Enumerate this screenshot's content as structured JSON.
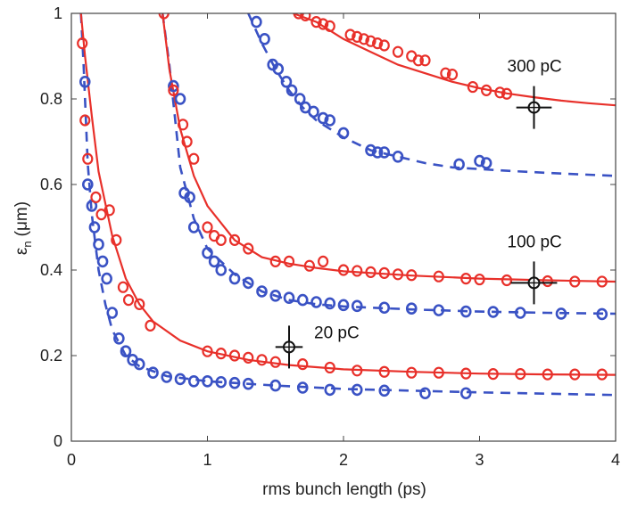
{
  "chart_data": {
    "type": "scatter",
    "xlabel": "rms bunch length (ps)",
    "ylabel_main": "ε",
    "ylabel_sub": "n",
    "ylabel_unit": "(μm)",
    "xlim": [
      0,
      4
    ],
    "ylim": [
      0,
      1
    ],
    "xticks": [
      "0",
      "1",
      "2",
      "3",
      "4"
    ],
    "yticks": [
      "0",
      "0.2",
      "0.4",
      "0.6",
      "0.8",
      "1"
    ],
    "grid": false,
    "colors": {
      "red": "#e8302a",
      "blue": "#3a52c4",
      "marker": "#111111"
    },
    "groups": [
      {
        "label": "20 pC",
        "red_curve": [
          [
            0.07,
            1.0
          ],
          [
            0.1,
            0.9
          ],
          [
            0.15,
            0.76
          ],
          [
            0.2,
            0.63
          ],
          [
            0.3,
            0.48
          ],
          [
            0.4,
            0.38
          ],
          [
            0.5,
            0.32
          ],
          [
            0.6,
            0.28
          ],
          [
            0.8,
            0.235
          ],
          [
            1.0,
            0.21
          ],
          [
            1.3,
            0.19
          ],
          [
            1.6,
            0.178
          ],
          [
            2.0,
            0.168
          ],
          [
            2.5,
            0.162
          ],
          [
            3.0,
            0.158
          ],
          [
            3.5,
            0.156
          ],
          [
            4.0,
            0.155
          ]
        ],
        "blue_curve": [
          [
            0.07,
            1.0
          ],
          [
            0.09,
            0.88
          ],
          [
            0.12,
            0.65
          ],
          [
            0.15,
            0.53
          ],
          [
            0.2,
            0.4
          ],
          [
            0.25,
            0.32
          ],
          [
            0.3,
            0.26
          ],
          [
            0.4,
            0.2
          ],
          [
            0.5,
            0.175
          ],
          [
            0.7,
            0.152
          ],
          [
            1.0,
            0.14
          ],
          [
            1.5,
            0.13
          ],
          [
            2.0,
            0.122
          ],
          [
            3.0,
            0.114
          ],
          [
            4.0,
            0.108
          ]
        ],
        "red_points": [
          [
            0.08,
            0.93
          ],
          [
            0.1,
            0.75
          ],
          [
            0.12,
            0.66
          ],
          [
            0.18,
            0.57
          ],
          [
            0.22,
            0.53
          ],
          [
            0.28,
            0.54
          ],
          [
            0.33,
            0.47
          ],
          [
            0.38,
            0.36
          ],
          [
            0.42,
            0.33
          ],
          [
            0.5,
            0.32
          ],
          [
            0.58,
            0.27
          ],
          [
            1.0,
            0.21
          ],
          [
            1.1,
            0.205
          ],
          [
            1.2,
            0.2
          ],
          [
            1.3,
            0.195
          ],
          [
            1.4,
            0.19
          ],
          [
            1.5,
            0.185
          ],
          [
            1.7,
            0.18
          ],
          [
            1.9,
            0.172
          ],
          [
            2.1,
            0.165
          ],
          [
            2.3,
            0.162
          ],
          [
            2.5,
            0.16
          ],
          [
            2.7,
            0.16
          ],
          [
            2.9,
            0.158
          ],
          [
            3.1,
            0.157
          ],
          [
            3.3,
            0.157
          ],
          [
            3.5,
            0.156
          ],
          [
            3.7,
            0.156
          ],
          [
            3.9,
            0.156
          ]
        ],
        "blue_points": [
          [
            0.1,
            0.84
          ],
          [
            0.12,
            0.6
          ],
          [
            0.15,
            0.55
          ],
          [
            0.17,
            0.5
          ],
          [
            0.2,
            0.46
          ],
          [
            0.23,
            0.42
          ],
          [
            0.26,
            0.38
          ],
          [
            0.3,
            0.3
          ],
          [
            0.35,
            0.24
          ],
          [
            0.4,
            0.21
          ],
          [
            0.45,
            0.19
          ],
          [
            0.5,
            0.18
          ],
          [
            0.6,
            0.16
          ],
          [
            0.7,
            0.15
          ],
          [
            0.8,
            0.145
          ],
          [
            0.9,
            0.14
          ],
          [
            1.0,
            0.14
          ],
          [
            1.1,
            0.138
          ],
          [
            1.2,
            0.136
          ],
          [
            1.3,
            0.134
          ],
          [
            1.5,
            0.13
          ],
          [
            1.7,
            0.125
          ],
          [
            1.9,
            0.12
          ],
          [
            2.1,
            0.12
          ],
          [
            2.3,
            0.118
          ],
          [
            2.6,
            0.112
          ],
          [
            2.9,
            0.112
          ]
        ],
        "marker": {
          "x": 1.6,
          "y": 0.22,
          "xerr": 0.1,
          "yerr": 0.05
        }
      },
      {
        "label": "100 pC",
        "red_curve": [
          [
            0.67,
            1.0
          ],
          [
            0.72,
            0.87
          ],
          [
            0.8,
            0.73
          ],
          [
            0.9,
            0.62
          ],
          [
            1.0,
            0.55
          ],
          [
            1.2,
            0.47
          ],
          [
            1.4,
            0.43
          ],
          [
            1.6,
            0.415
          ],
          [
            1.8,
            0.405
          ],
          [
            2.0,
            0.397
          ],
          [
            2.5,
            0.387
          ],
          [
            3.0,
            0.38
          ],
          [
            3.5,
            0.376
          ],
          [
            4.0,
            0.373
          ]
        ],
        "blue_curve": [
          [
            0.67,
            1.0
          ],
          [
            0.72,
            0.88
          ],
          [
            0.8,
            0.64
          ],
          [
            0.9,
            0.52
          ],
          [
            1.0,
            0.45
          ],
          [
            1.2,
            0.39
          ],
          [
            1.4,
            0.35
          ],
          [
            1.6,
            0.33
          ],
          [
            1.8,
            0.32
          ],
          [
            2.0,
            0.315
          ],
          [
            2.5,
            0.308
          ],
          [
            3.0,
            0.303
          ],
          [
            3.5,
            0.3
          ],
          [
            4.0,
            0.298
          ]
        ],
        "red_points": [
          [
            0.68,
            1.0
          ],
          [
            0.75,
            0.82
          ],
          [
            0.82,
            0.74
          ],
          [
            0.85,
            0.7
          ],
          [
            0.9,
            0.66
          ],
          [
            1.0,
            0.5
          ],
          [
            1.05,
            0.48
          ],
          [
            1.1,
            0.47
          ],
          [
            1.2,
            0.47
          ],
          [
            1.3,
            0.45
          ],
          [
            1.5,
            0.42
          ],
          [
            1.6,
            0.42
          ],
          [
            1.75,
            0.41
          ],
          [
            1.85,
            0.42
          ],
          [
            2.0,
            0.4
          ],
          [
            2.1,
            0.398
          ],
          [
            2.2,
            0.395
          ],
          [
            2.3,
            0.393
          ],
          [
            2.4,
            0.39
          ],
          [
            2.5,
            0.388
          ],
          [
            2.7,
            0.385
          ],
          [
            2.9,
            0.38
          ],
          [
            3.0,
            0.378
          ],
          [
            3.2,
            0.376
          ],
          [
            3.5,
            0.374
          ],
          [
            3.7,
            0.373
          ],
          [
            3.9,
            0.373
          ]
        ],
        "blue_points": [
          [
            0.75,
            0.83
          ],
          [
            0.8,
            0.8
          ],
          [
            0.83,
            0.58
          ],
          [
            0.87,
            0.57
          ],
          [
            0.9,
            0.5
          ],
          [
            1.0,
            0.44
          ],
          [
            1.05,
            0.42
          ],
          [
            1.1,
            0.4
          ],
          [
            1.2,
            0.38
          ],
          [
            1.3,
            0.37
          ],
          [
            1.4,
            0.35
          ],
          [
            1.5,
            0.34
          ],
          [
            1.6,
            0.335
          ],
          [
            1.7,
            0.33
          ],
          [
            1.8,
            0.325
          ],
          [
            1.9,
            0.322
          ],
          [
            2.0,
            0.318
          ],
          [
            2.1,
            0.316
          ],
          [
            2.3,
            0.312
          ],
          [
            2.5,
            0.31
          ],
          [
            2.7,
            0.306
          ],
          [
            2.9,
            0.303
          ],
          [
            3.1,
            0.302
          ],
          [
            3.3,
            0.3
          ],
          [
            3.6,
            0.298
          ],
          [
            3.9,
            0.297
          ]
        ],
        "marker": {
          "x": 3.4,
          "y": 0.37,
          "xerr": 0.17,
          "yerr": 0.05
        }
      },
      {
        "label": "300 pC",
        "red_curve": [
          [
            1.63,
            1.0
          ],
          [
            1.8,
            0.98
          ],
          [
            2.0,
            0.94
          ],
          [
            2.2,
            0.91
          ],
          [
            2.4,
            0.88
          ],
          [
            2.6,
            0.86
          ],
          [
            2.8,
            0.84
          ],
          [
            3.0,
            0.825
          ],
          [
            3.2,
            0.813
          ],
          [
            3.4,
            0.804
          ],
          [
            3.6,
            0.796
          ],
          [
            3.8,
            0.79
          ],
          [
            4.0,
            0.785
          ]
        ],
        "blue_curve": [
          [
            1.3,
            1.0
          ],
          [
            1.4,
            0.93
          ],
          [
            1.5,
            0.87
          ],
          [
            1.6,
            0.82
          ],
          [
            1.7,
            0.78
          ],
          [
            1.8,
            0.75
          ],
          [
            2.0,
            0.71
          ],
          [
            2.2,
            0.68
          ],
          [
            2.4,
            0.665
          ],
          [
            2.6,
            0.65
          ],
          [
            2.8,
            0.64
          ],
          [
            3.0,
            0.636
          ],
          [
            3.2,
            0.632
          ],
          [
            3.5,
            0.627
          ],
          [
            4.0,
            0.62
          ]
        ],
        "red_points": [
          [
            1.67,
            1.0
          ],
          [
            1.72,
            0.995
          ],
          [
            1.8,
            0.98
          ],
          [
            1.85,
            0.975
          ],
          [
            1.9,
            0.97
          ],
          [
            2.05,
            0.95
          ],
          [
            2.1,
            0.945
          ],
          [
            2.15,
            0.94
          ],
          [
            2.2,
            0.935
          ],
          [
            2.25,
            0.93
          ],
          [
            2.3,
            0.925
          ],
          [
            2.4,
            0.91
          ],
          [
            2.5,
            0.9
          ],
          [
            2.55,
            0.89
          ],
          [
            2.6,
            0.89
          ],
          [
            2.75,
            0.86
          ],
          [
            2.8,
            0.857
          ],
          [
            2.95,
            0.828
          ],
          [
            3.05,
            0.82
          ],
          [
            3.15,
            0.815
          ],
          [
            3.2,
            0.812
          ]
        ],
        "blue_points": [
          [
            1.36,
            0.98
          ],
          [
            1.42,
            0.94
          ],
          [
            1.48,
            0.88
          ],
          [
            1.52,
            0.87
          ],
          [
            1.58,
            0.84
          ],
          [
            1.62,
            0.82
          ],
          [
            1.68,
            0.8
          ],
          [
            1.72,
            0.78
          ],
          [
            1.78,
            0.77
          ],
          [
            1.85,
            0.755
          ],
          [
            1.9,
            0.75
          ],
          [
            2.0,
            0.72
          ],
          [
            2.2,
            0.68
          ],
          [
            2.25,
            0.675
          ],
          [
            2.3,
            0.675
          ],
          [
            2.4,
            0.665
          ],
          [
            2.85,
            0.647
          ],
          [
            3.0,
            0.655
          ],
          [
            3.05,
            0.65
          ]
        ],
        "marker": {
          "x": 3.4,
          "y": 0.78,
          "xerr": 0.13,
          "yerr": 0.05
        }
      }
    ]
  }
}
